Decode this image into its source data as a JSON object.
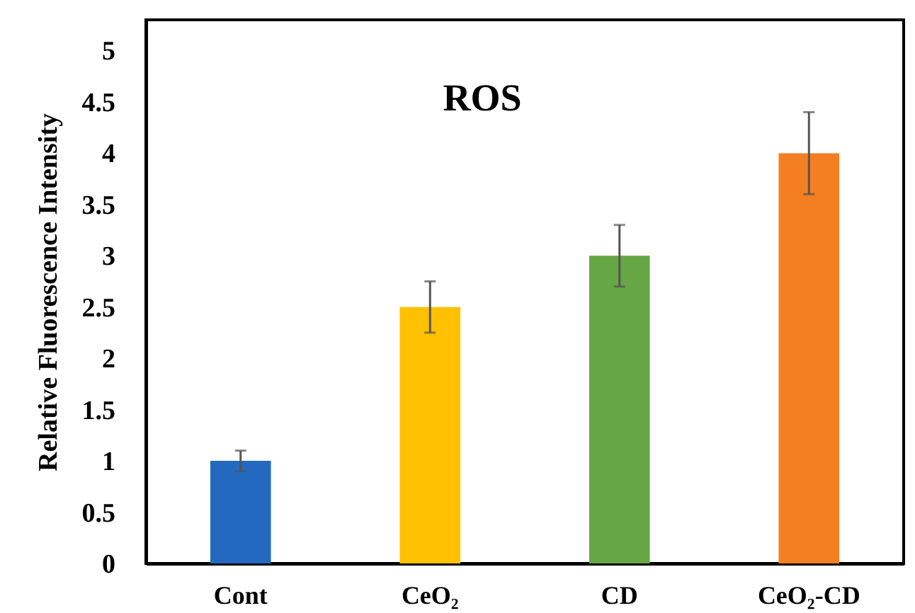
{
  "chart_data": {
    "type": "bar",
    "title": "ROS",
    "ylabel": "Relative Fluorescence Intensity",
    "categories": [
      "Cont",
      "CeO₂",
      "CD",
      "CeO₂-CD"
    ],
    "values": [
      1,
      2.5,
      3,
      4
    ],
    "colors": [
      "#2469c0",
      "#ffc000",
      "#66a644",
      "#f47f22"
    ],
    "errors": [
      0.1,
      0.25,
      0.3,
      0.4
    ],
    "ylim": [
      0,
      5.3
    ],
    "yticks": [
      0,
      0.5,
      1,
      1.5,
      2,
      2.5,
      3,
      3.5,
      4,
      4.5,
      5
    ],
    "grid": false,
    "legend": false
  }
}
